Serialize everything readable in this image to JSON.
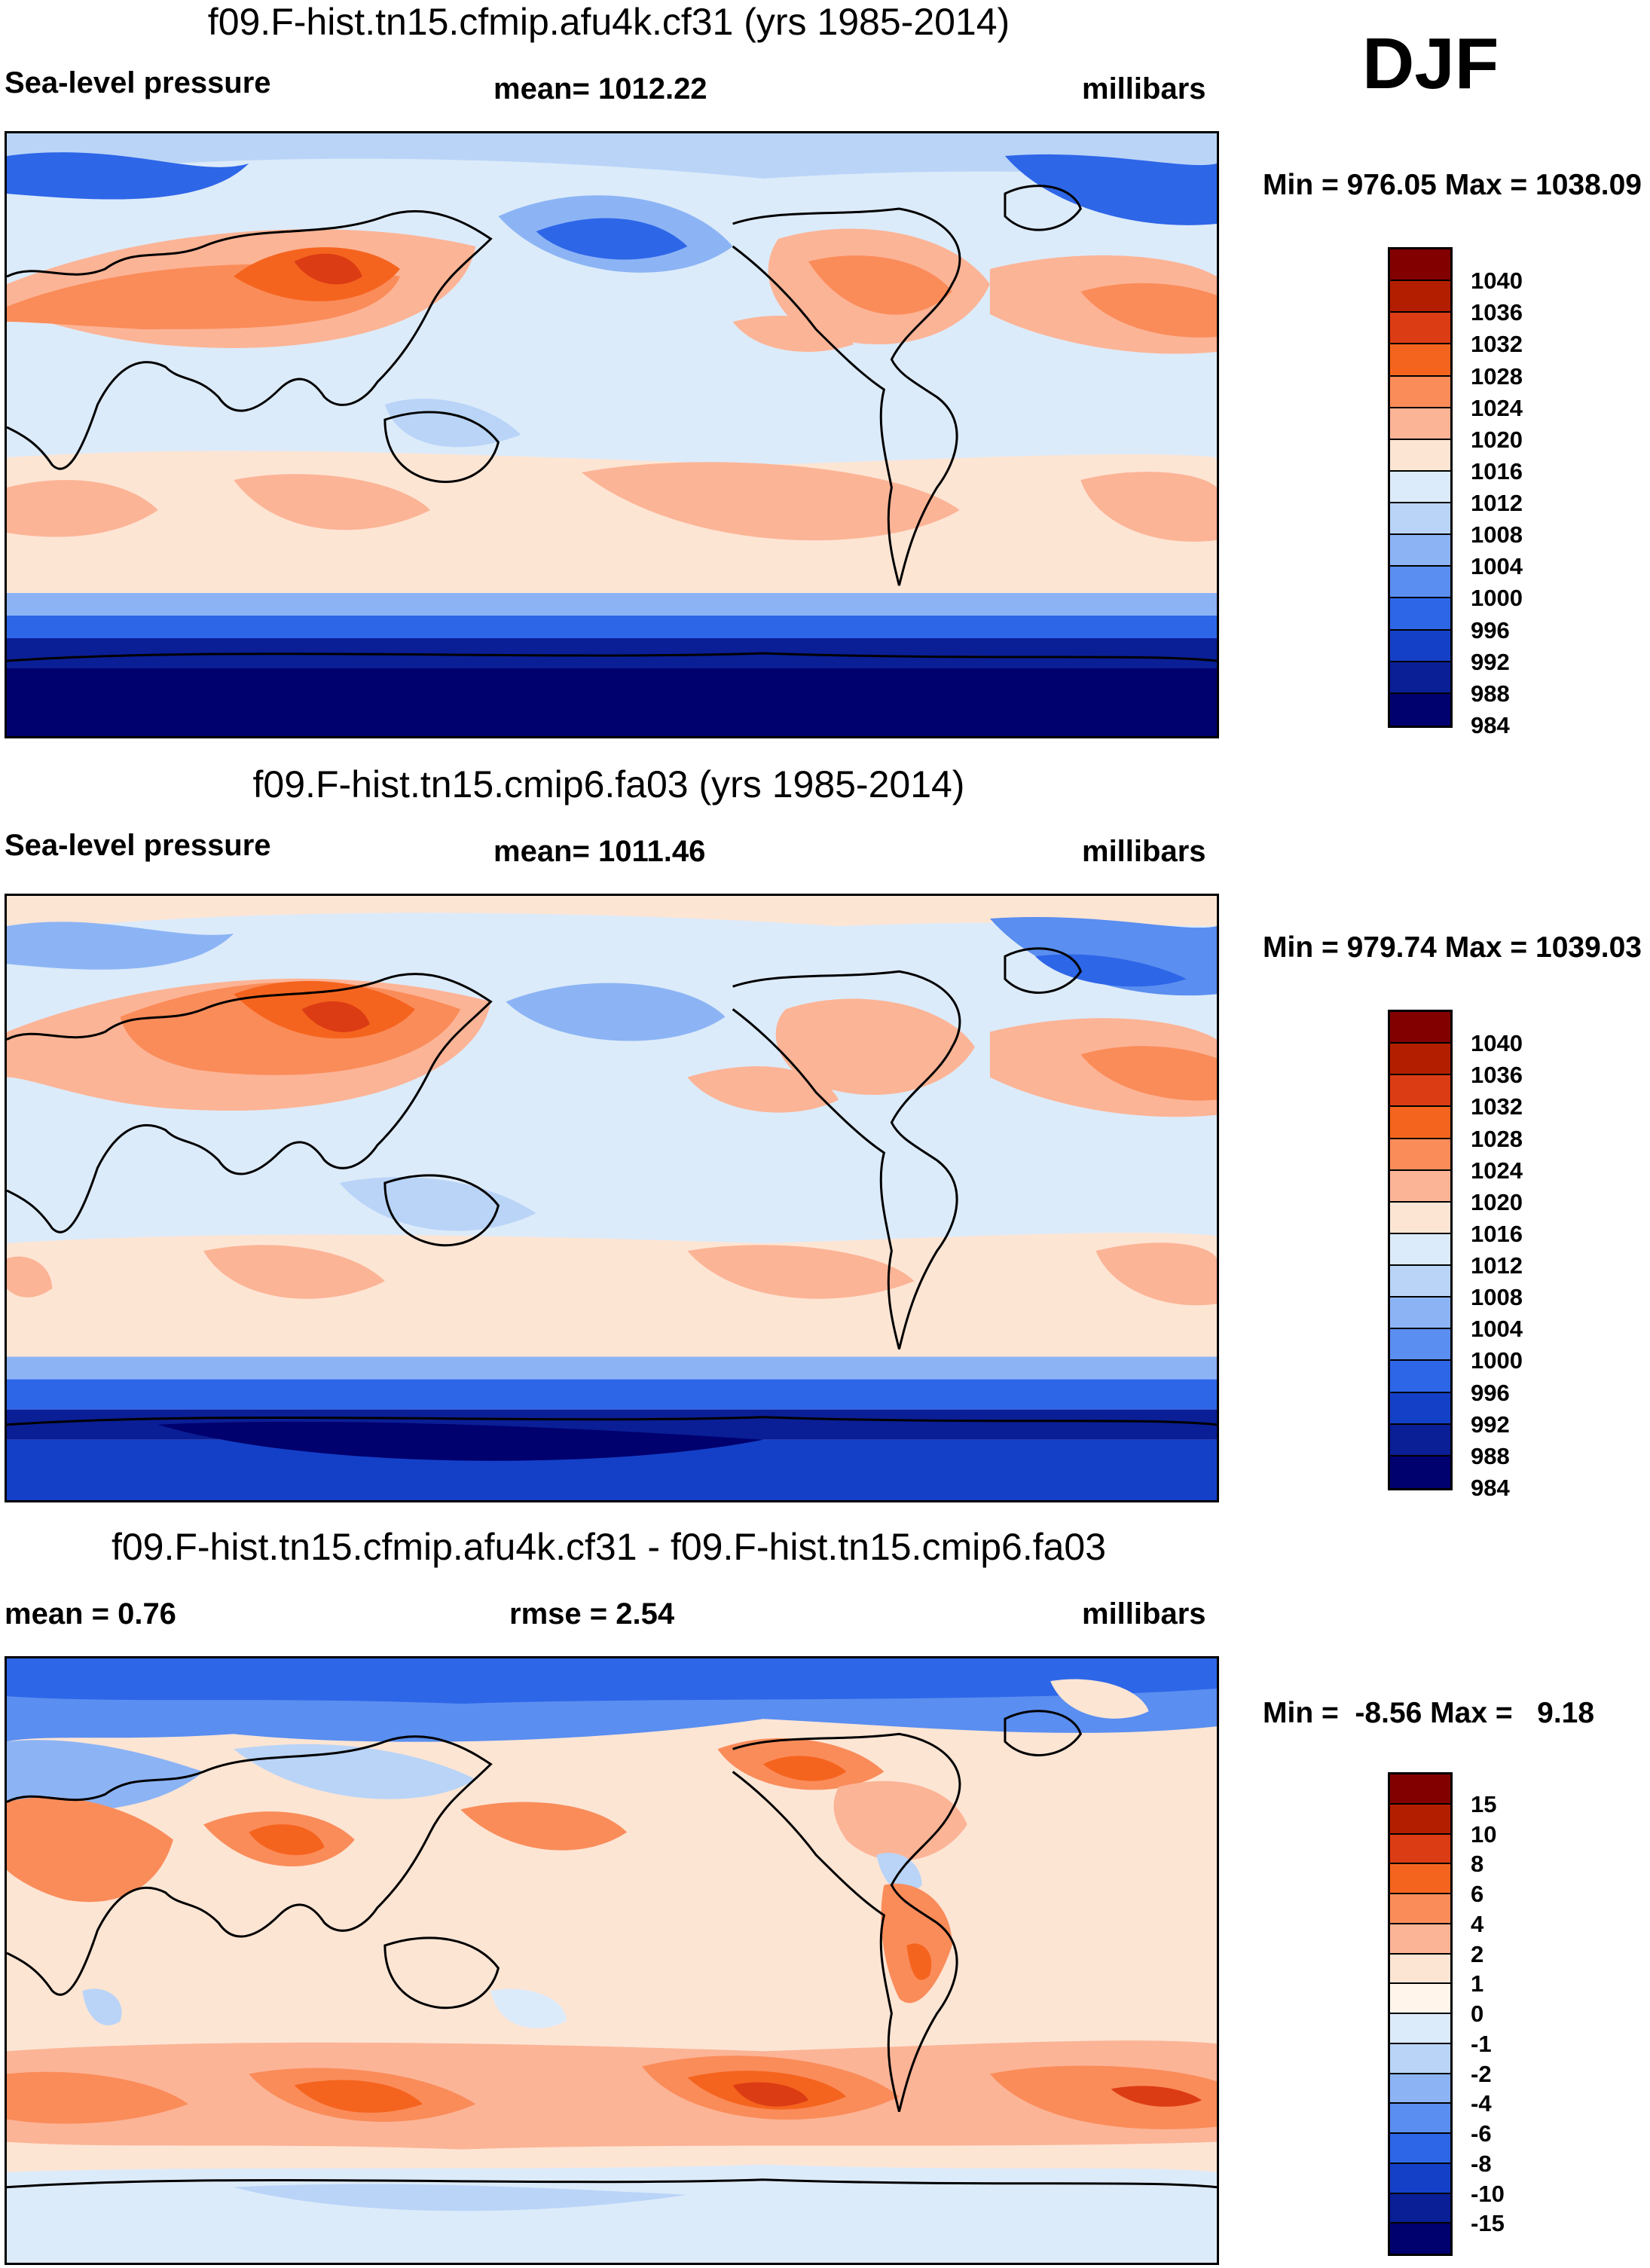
{
  "season": "DJF",
  "panels": [
    {
      "title": "f09.F-hist.tn15.cfmip.afu4k.cf31 (yrs 1985-2014)",
      "left_label": "Sea-level pressure",
      "center_label": "mean= 1012.22",
      "right_label": "millibars",
      "minmax": "Min = 976.05 Max = 1038.09",
      "colorbar": {
        "colors": [
          "#820000",
          "#b41e00",
          "#dc3c14",
          "#f5641e",
          "#fa8c5a",
          "#fcb496",
          "#fde5d4",
          "#dcebfa",
          "#b9d4f7",
          "#8cb4f5",
          "#5a8ef0",
          "#2e66e8",
          "#1440c8",
          "#0a1e96",
          "#00006e"
        ],
        "labels": [
          "1040",
          "1036",
          "1032",
          "1028",
          "1024",
          "1020",
          "1016",
          "1012",
          "1008",
          "1004",
          "1000",
          "996",
          "992",
          "988",
          "984"
        ]
      }
    },
    {
      "title": "f09.F-hist.tn15.cmip6.fa03 (yrs 1985-2014)",
      "left_label": "Sea-level pressure",
      "center_label": "mean= 1011.46",
      "right_label": "millibars",
      "minmax": "Min = 979.74 Max = 1039.03",
      "colorbar": {
        "colors": [
          "#820000",
          "#b41e00",
          "#dc3c14",
          "#f5641e",
          "#fa8c5a",
          "#fcb496",
          "#fde5d4",
          "#dcebfa",
          "#b9d4f7",
          "#8cb4f5",
          "#5a8ef0",
          "#2e66e8",
          "#1440c8",
          "#0a1e96",
          "#00006e"
        ],
        "labels": [
          "1040",
          "1036",
          "1032",
          "1028",
          "1024",
          "1020",
          "1016",
          "1012",
          "1008",
          "1004",
          "1000",
          "996",
          "992",
          "988",
          "984"
        ]
      }
    },
    {
      "title": "f09.F-hist.tn15.cfmip.afu4k.cf31 - f09.F-hist.tn15.cmip6.fa03",
      "left_label": "mean =   0.76",
      "center_label": "rmse =   2.54",
      "right_label": "millibars",
      "minmax": "Min =  -8.56 Max =   9.18",
      "colorbar": {
        "colors": [
          "#820000",
          "#b41e00",
          "#dc3c14",
          "#f5641e",
          "#fa8c5a",
          "#fcb496",
          "#fde5d4",
          "#fff5ea",
          "#dcebfa",
          "#b9d4f7",
          "#8cb4f5",
          "#5a8ef0",
          "#2e66e8",
          "#1440c8",
          "#0a1e96",
          "#00006e"
        ],
        "labels": [
          "15",
          "10",
          "8",
          "6",
          "4",
          "2",
          "1",
          "0",
          "-1",
          "-2",
          "-4",
          "-6",
          "-8",
          "-10",
          "-15"
        ]
      }
    }
  ]
}
